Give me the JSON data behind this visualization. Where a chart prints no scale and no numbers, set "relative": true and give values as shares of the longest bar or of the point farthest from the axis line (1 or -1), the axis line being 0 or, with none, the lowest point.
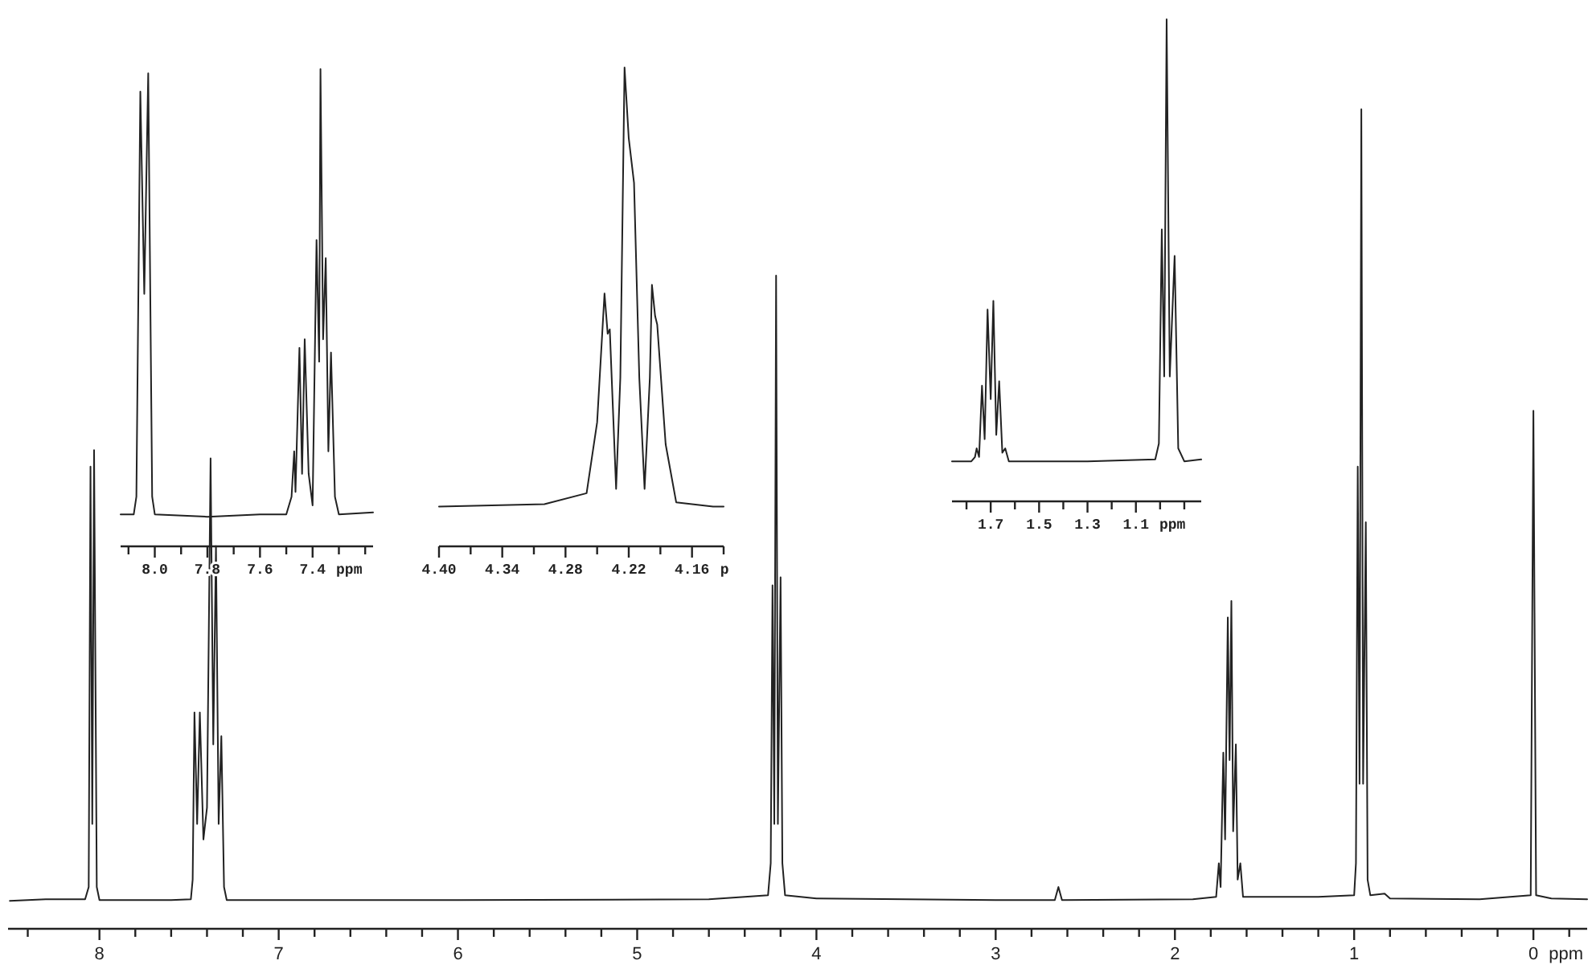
{
  "chart_data": [
    {
      "type": "line",
      "relative": true,
      "xlabel": "ppm",
      "xlim": [
        8.51,
        -0.3
      ],
      "xticks": [
        {
          "value": 8.4,
          "label": null
        },
        8,
        {
          "value": 7.8,
          "label": null
        },
        {
          "value": 7.6,
          "label": null
        },
        {
          "value": 7.4,
          "label": null
        },
        {
          "value": 7.2,
          "label": null
        },
        7,
        {
          "value": 6.8,
          "label": null
        },
        {
          "value": 6.6,
          "label": null
        },
        {
          "value": 6.4,
          "label": null
        },
        {
          "value": 6.2,
          "label": null
        },
        6,
        {
          "value": 5.8,
          "label": null
        },
        {
          "value": 5.6,
          "label": null
        },
        {
          "value": 5.4,
          "label": null
        },
        {
          "value": 5.2,
          "label": null
        },
        5,
        {
          "value": 4.8,
          "label": null
        },
        {
          "value": 4.6,
          "label": null
        },
        {
          "value": 4.4,
          "label": null
        },
        {
          "value": 4.2,
          "label": null
        },
        4,
        {
          "value": 3.8,
          "label": null
        },
        {
          "value": 3.6,
          "label": null
        },
        {
          "value": 3.4,
          "label": null
        },
        {
          "value": 3.2,
          "label": null
        },
        3,
        {
          "value": 2.8,
          "label": null
        },
        {
          "value": 2.6,
          "label": null
        },
        {
          "value": 2.4,
          "label": null
        },
        {
          "value": 2.2,
          "label": null
        },
        2,
        {
          "value": 1.8,
          "label": null
        },
        {
          "value": 1.6,
          "label": null
        },
        {
          "value": 1.4,
          "label": null
        },
        {
          "value": 1.2,
          "label": null
        },
        1,
        {
          "value": 0.8,
          "label": null
        },
        {
          "value": 0.6,
          "label": null
        },
        {
          "value": 0.4,
          "label": null
        },
        {
          "value": 0.2,
          "label": null
        },
        0,
        {
          "value": -0.2,
          "label": null
        }
      ],
      "series": [
        {
          "color": "#222222",
          "x": [
            8.5,
            8.3,
            8.08,
            8.06,
            8.05,
            8.04,
            8.03,
            8.015,
            8.0,
            7.6,
            7.49,
            7.48,
            7.47,
            7.455,
            7.44,
            7.42,
            7.4,
            7.38,
            7.365,
            7.35,
            7.335,
            7.32,
            7.305,
            7.29,
            6.0,
            4.6,
            4.4,
            4.27,
            4.255,
            4.245,
            4.235,
            4.225,
            4.215,
            4.2,
            4.19,
            4.175,
            4.0,
            3.0,
            2.67,
            2.65,
            2.63,
            1.9,
            1.77,
            1.755,
            1.745,
            1.73,
            1.72,
            1.705,
            1.695,
            1.685,
            1.675,
            1.66,
            1.65,
            1.635,
            1.62,
            1.2,
            1.0,
            0.99,
            0.98,
            0.97,
            0.96,
            0.95,
            0.935,
            0.925,
            0.91,
            0.83,
            0.8,
            0.3,
            0.015,
            0.0,
            -0.015,
            -0.1,
            -0.3
          ],
          "values": [
            0.034,
            0.036,
            0.036,
            0.051,
            0.564,
            0.128,
            0.584,
            0.051,
            0.035,
            0.035,
            0.036,
            0.06,
            0.264,
            0.128,
            0.264,
            0.109,
            0.148,
            0.574,
            0.225,
            0.467,
            0.128,
            0.235,
            0.051,
            0.035,
            0.035,
            0.036,
            0.039,
            0.041,
            0.08,
            0.419,
            0.128,
            0.797,
            0.128,
            0.429,
            0.08,
            0.041,
            0.037,
            0.035,
            0.035,
            0.051,
            0.035,
            0.036,
            0.039,
            0.08,
            0.051,
            0.215,
            0.109,
            0.38,
            0.206,
            0.4,
            0.119,
            0.225,
            0.06,
            0.08,
            0.039,
            0.039,
            0.041,
            0.08,
            0.564,
            0.177,
            1.0,
            0.177,
            0.496,
            0.06,
            0.041,
            0.043,
            0.037,
            0.036,
            0.041,
            0.632,
            0.041,
            0.037,
            0.036
          ]
        }
      ]
    },
    {
      "type": "line",
      "relative": true,
      "xlabel": "ppm",
      "xlim": [
        8.13,
        7.17
      ],
      "xticks": [
        {
          "value": 8.1,
          "label": null
        },
        {
          "value": 8.0,
          "label": "8.0"
        },
        {
          "value": 7.9,
          "label": null
        },
        {
          "value": 7.8,
          "label": "7.8"
        },
        {
          "value": 7.7,
          "label": null
        },
        {
          "value": 7.6,
          "label": "7.6"
        },
        {
          "value": 7.5,
          "label": null
        },
        {
          "value": 7.4,
          "label": "7.4"
        },
        {
          "value": 7.3,
          "label": null
        },
        {
          "value": 7.2,
          "label": null
        }
      ],
      "series": [
        {
          "color": "#222222",
          "x": [
            8.13,
            8.08,
            8.07,
            8.055,
            8.04,
            8.025,
            8.01,
            8.0,
            7.8,
            7.6,
            7.5,
            7.48,
            7.47,
            7.465,
            7.45,
            7.44,
            7.43,
            7.415,
            7.4,
            7.385,
            7.375,
            7.37,
            7.36,
            7.35,
            7.34,
            7.33,
            7.315,
            7.3,
            7.17
          ],
          "values": [
            0.067,
            0.067,
            0.104,
            0.953,
            0.529,
            0.991,
            0.104,
            0.067,
            0.062,
            0.067,
            0.067,
            0.104,
            0.199,
            0.114,
            0.416,
            0.152,
            0.434,
            0.152,
            0.086,
            0.642,
            0.387,
            1.0,
            0.434,
            0.604,
            0.199,
            0.406,
            0.104,
            0.067,
            0.071
          ]
        }
      ]
    },
    {
      "type": "line",
      "relative": true,
      "xlabel": "p",
      "xlim": [
        4.4,
        4.13
      ],
      "xticks": [
        {
          "value": 4.4,
          "label": "4.40"
        },
        {
          "value": 4.37,
          "label": null
        },
        {
          "value": 4.34,
          "label": "4.34"
        },
        {
          "value": 4.31,
          "label": null
        },
        {
          "value": 4.28,
          "label": "4.28"
        },
        {
          "value": 4.25,
          "label": null
        },
        {
          "value": 4.22,
          "label": "4.22"
        },
        {
          "value": 4.19,
          "label": null
        },
        {
          "value": 4.16,
          "label": "4.16"
        },
        {
          "value": 4.13,
          "label": null
        }
      ],
      "series": [
        {
          "color": "#222222",
          "x": [
            4.4,
            4.3,
            4.26,
            4.25,
            4.243,
            4.24,
            4.238,
            4.232,
            4.228,
            4.224,
            4.22,
            4.215,
            4.21,
            4.205,
            4.2,
            4.198,
            4.195,
            4.193,
            4.185,
            4.175,
            4.14,
            4.13
          ],
          "values": [
            0.083,
            0.088,
            0.111,
            0.259,
            0.528,
            0.444,
            0.453,
            0.12,
            0.352,
            1.0,
            0.852,
            0.759,
            0.352,
            0.12,
            0.352,
            0.546,
            0.481,
            0.463,
            0.213,
            0.092,
            0.083,
            0.083
          ]
        }
      ]
    },
    {
      "type": "line",
      "relative": true,
      "xlabel": "ppm",
      "xlim": [
        1.86,
        0.83
      ],
      "xticks": [
        {
          "value": 1.8,
          "label": null
        },
        {
          "value": 1.7,
          "label": "1.7"
        },
        {
          "value": 1.6,
          "label": null
        },
        {
          "value": 1.5,
          "label": "1.5"
        },
        {
          "value": 1.4,
          "label": null
        },
        {
          "value": 1.3,
          "label": "1.3"
        },
        {
          "value": 1.2,
          "label": null
        },
        {
          "value": 1.1,
          "label": "1.1"
        },
        {
          "value": 1.0,
          "label": null
        },
        {
          "value": 0.9,
          "label": null
        }
      ],
      "series": [
        {
          "color": "#222222",
          "x": [
            1.86,
            1.78,
            1.765,
            1.758,
            1.748,
            1.736,
            1.725,
            1.713,
            1.7,
            1.689,
            1.677,
            1.665,
            1.652,
            1.64,
            1.625,
            1.3,
            1.02,
            1.005,
            0.993,
            0.983,
            0.973,
            0.96,
            0.94,
            0.925,
            0.9,
            0.83
          ],
          "values": [
            0.083,
            0.083,
            0.092,
            0.11,
            0.092,
            0.24,
            0.129,
            0.398,
            0.212,
            0.416,
            0.138,
            0.249,
            0.101,
            0.11,
            0.083,
            0.083,
            0.087,
            0.12,
            0.564,
            0.259,
            1.0,
            0.259,
            0.509,
            0.11,
            0.083,
            0.087
          ]
        }
      ]
    }
  ]
}
